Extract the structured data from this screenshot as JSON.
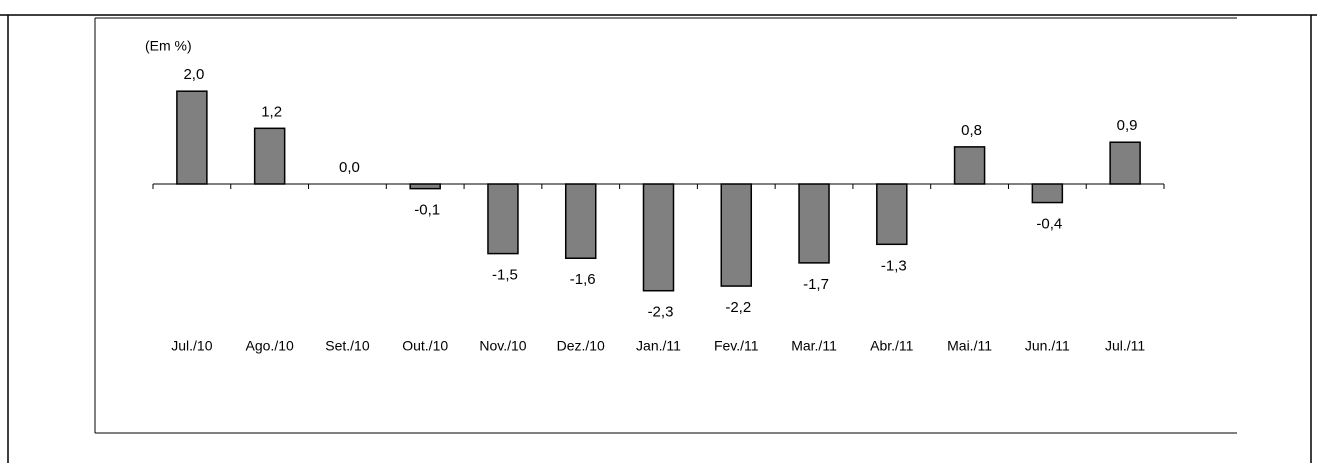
{
  "chart_data": {
    "type": "bar",
    "unit_label": "(Em %)",
    "categories": [
      "Jul./10",
      "Ago./10",
      "Set./10",
      "Out./10",
      "Nov./10",
      "Dez./10",
      "Jan./11",
      "Fev./11",
      "Mar./11",
      "Abr./11",
      "Mai./11",
      "Jun./11",
      "Jul./11"
    ],
    "values": [
      2.0,
      1.2,
      0.0,
      -0.1,
      -1.5,
      -1.6,
      -2.3,
      -2.2,
      -1.7,
      -1.3,
      0.8,
      -0.4,
      0.9
    ],
    "value_labels": [
      "2,0",
      "1,2",
      "0,0",
      "-0,1",
      "-1,5",
      "-1,6",
      "-2,3",
      "-2,2",
      "-1,7",
      "-1,3",
      "0,8",
      "-0,4",
      "0,9"
    ],
    "color": "#808080",
    "ylim": [
      -2.5,
      2.5
    ]
  }
}
